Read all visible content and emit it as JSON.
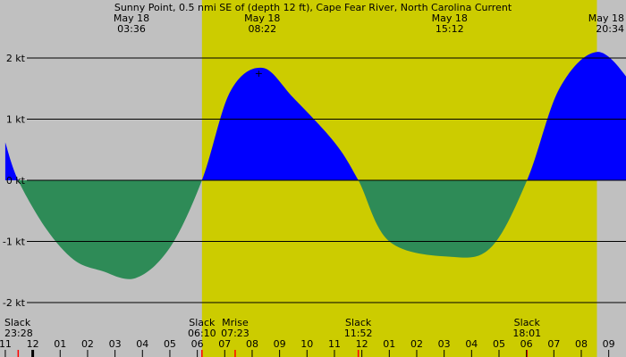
{
  "chart_data": {
    "type": "area",
    "title": "Sunny Point, 0.5 nmi SE of (depth 12 ft), Cape Fear River, North Carolina Current",
    "ylim": [
      -2.2,
      2.2
    ],
    "xlim": [
      -1.0,
      33.2
    ],
    "y_ticks": [
      {
        "value": 2,
        "label": "2 kt"
      },
      {
        "value": 1,
        "label": "1 kt"
      },
      {
        "value": 0,
        "label": "0 kt"
      },
      {
        "value": -1,
        "label": "-1 kt"
      },
      {
        "value": -2,
        "label": "-2 kt"
      }
    ],
    "x_ticks": [
      {
        "value": -1,
        "label": "11"
      },
      {
        "value": 0,
        "label": "12"
      },
      {
        "value": 1,
        "label": "01"
      },
      {
        "value": 2,
        "label": "02"
      },
      {
        "value": 3,
        "label": "03"
      },
      {
        "value": 4,
        "label": "04"
      },
      {
        "value": 5,
        "label": "05"
      },
      {
        "value": 6,
        "label": "06"
      },
      {
        "value": 7,
        "label": "07"
      },
      {
        "value": 8,
        "label": "08"
      },
      {
        "value": 9,
        "label": "09"
      },
      {
        "value": 10,
        "label": "10"
      },
      {
        "value": 11,
        "label": "11"
      },
      {
        "value": 12,
        "label": "12"
      },
      {
        "value": 13,
        "label": "01"
      },
      {
        "value": 14,
        "label": "02"
      },
      {
        "value": 15,
        "label": "03"
      },
      {
        "value": 16,
        "label": "04"
      },
      {
        "value": 17,
        "label": "05"
      },
      {
        "value": 18,
        "label": "06"
      },
      {
        "value": 19,
        "label": "07"
      },
      {
        "value": 20,
        "label": "08"
      },
      {
        "value": 21,
        "label": "09"
      }
    ],
    "daylight": [
      6.17,
      20.57
    ],
    "points": [
      {
        "x": -1.0,
        "y": 0.62
      },
      {
        "x": -0.53,
        "y": 0.0
      },
      {
        "x": 0.5,
        "y": -0.8
      },
      {
        "x": 1.5,
        "y": -1.3
      },
      {
        "x": 2.5,
        "y": -1.48
      },
      {
        "x": 3.75,
        "y": -1.6
      },
      {
        "x": 5.0,
        "y": -1.1
      },
      {
        "x": 6.17,
        "y": 0.0
      },
      {
        "x": 7.2,
        "y": 1.45
      },
      {
        "x": 8.37,
        "y": 1.84
      },
      {
        "x": 9.5,
        "y": 1.35
      },
      {
        "x": 11.0,
        "y": 0.62
      },
      {
        "x": 11.87,
        "y": 0.0
      },
      {
        "x": 13.0,
        "y": -1.0
      },
      {
        "x": 15.2,
        "y": -1.25
      },
      {
        "x": 16.7,
        "y": -1.1
      },
      {
        "x": 18.02,
        "y": 0.0
      },
      {
        "x": 19.2,
        "y": 1.5
      },
      {
        "x": 20.57,
        "y": 2.1
      },
      {
        "x": 21.8,
        "y": 1.6
      },
      {
        "x": 22.2,
        "y": 1.2
      }
    ],
    "extrema": [
      {
        "x": 3.6,
        "date": "May 18",
        "time": "03:36"
      },
      {
        "x": 8.37,
        "date": "May 18",
        "time": "08:22",
        "marker": "+"
      },
      {
        "x": 15.2,
        "date": "May 18",
        "time": "15:12"
      },
      {
        "x": 20.57,
        "date": "May 18",
        "time": "20:34"
      }
    ],
    "events": [
      {
        "x": -0.53,
        "label": "Slack",
        "time": "23:28",
        "anchor": "start"
      },
      {
        "x": 6.17,
        "label": "Slack",
        "time": "06:10",
        "anchor": "middle"
      },
      {
        "x": 7.38,
        "label": "Mrise",
        "time": "07:23",
        "anchor": "middle"
      },
      {
        "x": 11.87,
        "label": "Slack",
        "time": "11:52",
        "anchor": "middle"
      },
      {
        "x": 18.02,
        "label": "Slack",
        "time": "18:01",
        "anchor": "middle"
      }
    ],
    "colors": {
      "night": "#c0c0c0",
      "day": "#cccc00",
      "flood": "#0000ff",
      "ebb": "#2e8b57",
      "grid": "#000000",
      "event_marker": "#ff0000"
    }
  }
}
